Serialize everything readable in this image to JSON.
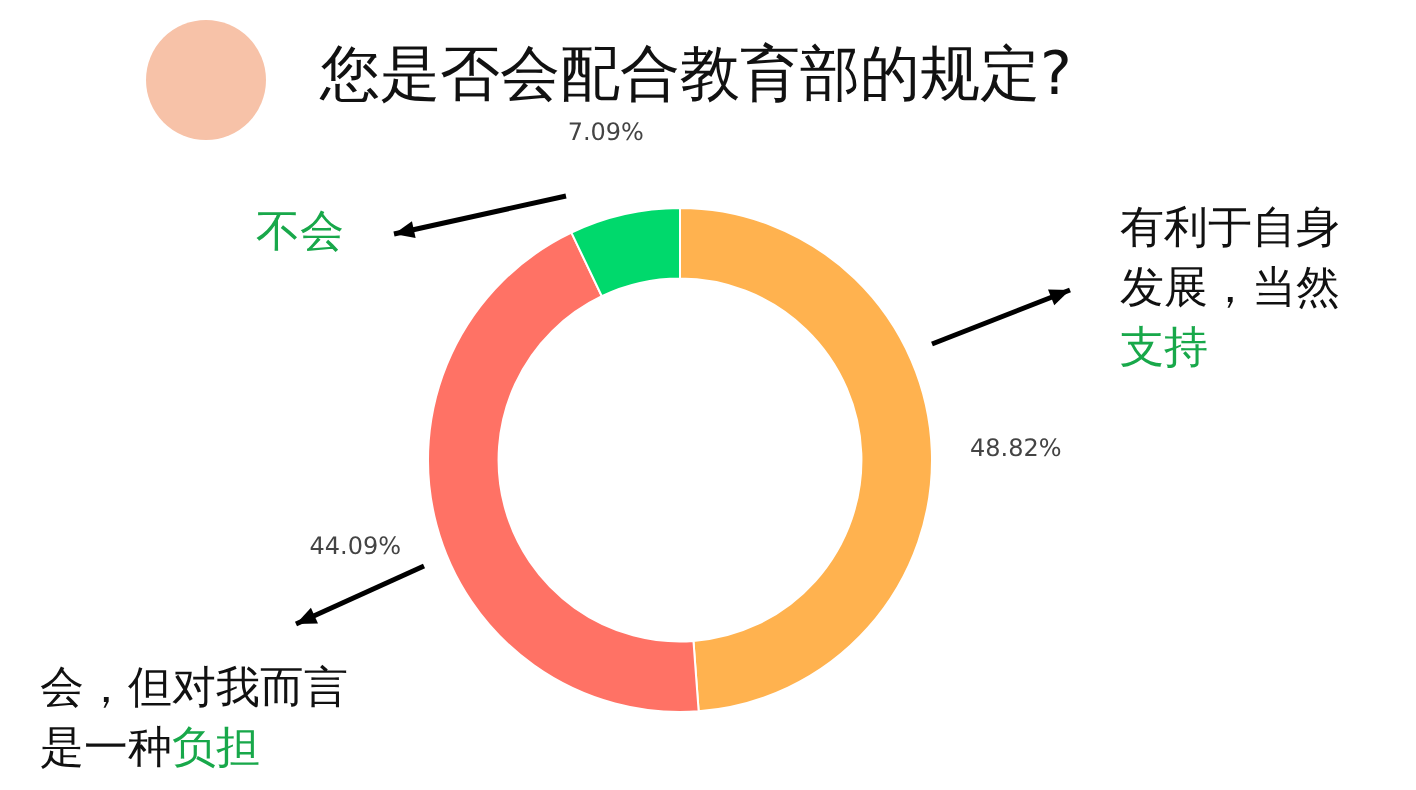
{
  "chart_data": {
    "type": "donut",
    "title": "您是否会配合教育部的规定?",
    "categories": [
      "有利于自身发展，当然**支持**",
      "会，但对我而言是一种**负担**",
      "**不会**"
    ],
    "values": [
      48.82,
      44.09,
      7.09
    ],
    "colors": [
      "#ffb24f",
      "#ff7265",
      "#00d96c"
    ],
    "value_labels": [
      "48.82%",
      "44.09%",
      "7.09%"
    ]
  }
}
